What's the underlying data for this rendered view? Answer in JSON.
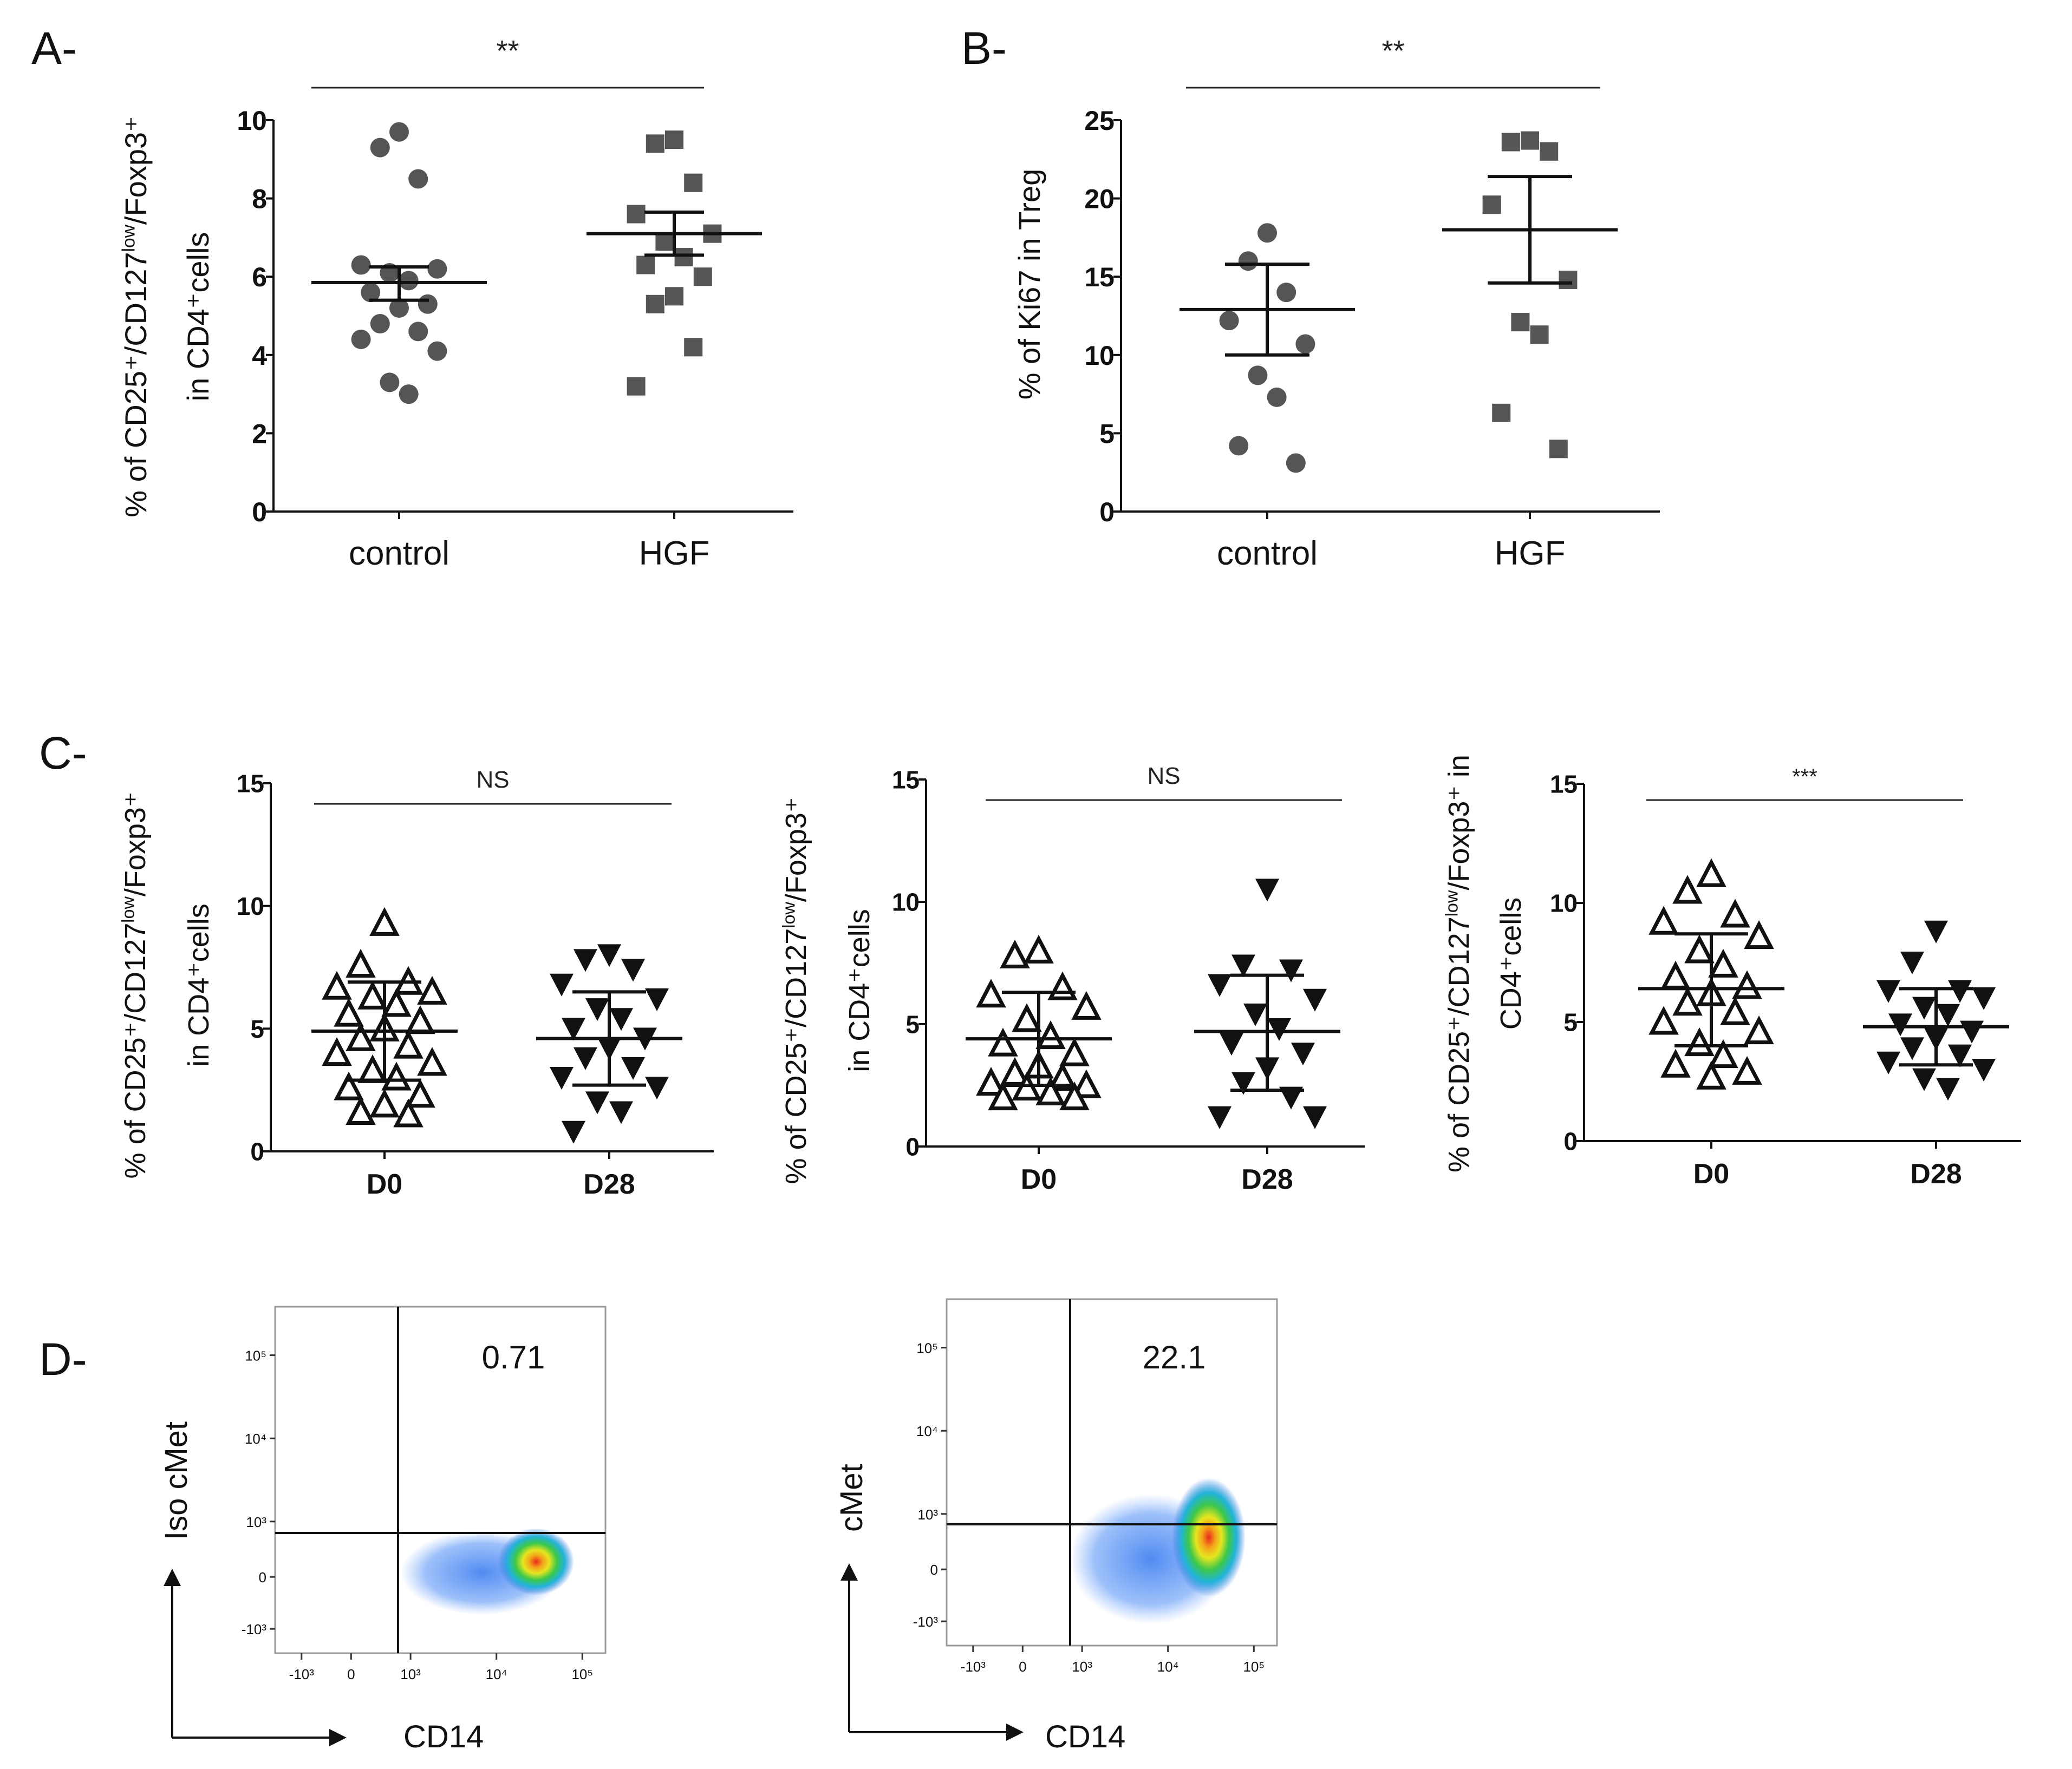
{
  "panels": {
    "A": {
      "label": "A-"
    },
    "B": {
      "label": "B-"
    },
    "C": {
      "label": "C-"
    },
    "D": {
      "label": "D-"
    }
  },
  "colors": {
    "marker": "#555555",
    "axis": "#111111",
    "line": "#222222"
  },
  "chart_data": [
    {
      "id": "A",
      "type": "scatter",
      "title": "",
      "significance": "**",
      "categories": [
        "control",
        "HGF"
      ],
      "ylabel": [
        "% of CD25⁺/CD127",
        "low",
        "/Foxp3⁺",
        "in CD4⁺cells"
      ],
      "ylim": [
        0,
        10
      ],
      "yticks": [
        0,
        2,
        4,
        6,
        8,
        10
      ],
      "marker": "circle-square",
      "series": [
        {
          "name": "control",
          "values": [
            9.7,
            9.3,
            8.5,
            6.3,
            6.2,
            6.1,
            5.9,
            5.6,
            5.3,
            5.2,
            4.8,
            4.6,
            4.4,
            4.1,
            3.3,
            3.0
          ],
          "mean": 5.85,
          "err_low": 5.4,
          "err_high": 6.25
        },
        {
          "name": "HGF",
          "values": [
            9.5,
            9.4,
            8.4,
            7.6,
            7.1,
            6.9,
            6.5,
            6.3,
            6.0,
            5.5,
            5.3,
            4.2,
            3.2
          ],
          "mean": 7.1,
          "err_low": 6.55,
          "err_high": 7.65
        }
      ]
    },
    {
      "id": "B",
      "type": "scatter",
      "title": "",
      "significance": "**",
      "categories": [
        "control",
        "HGF"
      ],
      "ylabel": [
        "% of Ki67  in Treg"
      ],
      "ylim": [
        0,
        25
      ],
      "yticks": [
        0,
        5,
        10,
        15,
        20,
        25
      ],
      "marker": "circle-square",
      "series": [
        {
          "name": "control",
          "values": [
            17.8,
            16.0,
            14.0,
            12.2,
            10.7,
            8.7,
            7.3,
            4.2,
            3.1
          ],
          "mean": 12.9,
          "err_low": 10.0,
          "err_high": 15.8
        },
        {
          "name": "HGF",
          "values": [
            23.7,
            23.6,
            23.0,
            19.6,
            14.8,
            12.1,
            11.3,
            6.3,
            4.0
          ],
          "mean": 18.0,
          "err_low": 14.6,
          "err_high": 21.4
        }
      ]
    },
    {
      "id": "C1",
      "type": "scatter",
      "title": "",
      "significance": "NS",
      "categories": [
        "D0",
        "D28"
      ],
      "ylabel": [
        "% of CD25⁺/CD127",
        "low",
        "/Foxp3⁺",
        "in CD4⁺cells"
      ],
      "ylim": [
        0,
        15
      ],
      "yticks": [
        0,
        5,
        10,
        15
      ],
      "marker": "triangle",
      "series": [
        {
          "name": "D0",
          "values": [
            9.3,
            7.6,
            6.9,
            6.7,
            6.5,
            6.3,
            6.0,
            5.6,
            5.3,
            5.0,
            4.6,
            4.3,
            4.0,
            3.6,
            3.3,
            3.0,
            2.6,
            2.3,
            1.9,
            1.6,
            1.5
          ],
          "mean": 4.9,
          "err_low": 2.9,
          "err_high": 6.9
        },
        {
          "name": "D28",
          "values": [
            8.0,
            7.8,
            7.4,
            6.8,
            6.2,
            5.8,
            5.4,
            5.0,
            4.6,
            4.2,
            3.8,
            3.4,
            3.0,
            2.6,
            2.0,
            1.6,
            0.8
          ],
          "mean": 4.6,
          "err_low": 2.7,
          "err_high": 6.5
        }
      ]
    },
    {
      "id": "C2",
      "type": "scatter",
      "title": "",
      "significance": "NS",
      "categories": [
        "D0",
        "D28"
      ],
      "ylabel": [
        "% of CD25⁺/CD127",
        "low",
        "/Foxp3⁺",
        "in CD4⁺cells"
      ],
      "ylim": [
        0,
        15
      ],
      "yticks": [
        0,
        5,
        10,
        15
      ],
      "marker": "triangle",
      "series": [
        {
          "name": "D0",
          "values": [
            8.0,
            7.8,
            6.5,
            6.2,
            5.7,
            5.2,
            4.5,
            4.2,
            3.8,
            3.3,
            3.0,
            2.8,
            2.6,
            2.5,
            2.4,
            2.2,
            2.0,
            2.0
          ],
          "mean": 4.4,
          "err_low": 2.5,
          "err_high": 6.3
        },
        {
          "name": "D28",
          "values": [
            10.5,
            7.4,
            7.2,
            6.6,
            6.0,
            5.4,
            4.8,
            4.2,
            3.8,
            3.2,
            2.6,
            2.0,
            1.2,
            1.2
          ],
          "mean": 4.7,
          "err_low": 2.3,
          "err_high": 7.0
        }
      ]
    },
    {
      "id": "C3",
      "type": "scatter",
      "title": "",
      "significance": "***",
      "categories": [
        "D0",
        "D28"
      ],
      "ylabel": [
        "% of CD25⁺/CD127",
        "low",
        "/Foxp3⁺ in",
        "CD4⁺cells"
      ],
      "ylim": [
        0,
        15
      ],
      "yticks": [
        0,
        5,
        10,
        15
      ],
      "marker": "triangle",
      "series": [
        {
          "name": "D0",
          "values": [
            11.2,
            10.5,
            9.5,
            9.2,
            8.6,
            8.0,
            7.4,
            6.9,
            6.5,
            6.2,
            5.8,
            5.4,
            5.0,
            4.6,
            4.1,
            3.6,
            3.2,
            2.9,
            2.7
          ],
          "mean": 6.4,
          "err_low": 4.0,
          "err_high": 8.7
        },
        {
          "name": "D28",
          "values": [
            8.8,
            7.5,
            6.3,
            6.3,
            6.0,
            5.6,
            5.3,
            4.9,
            4.6,
            4.3,
            3.9,
            3.6,
            3.3,
            3.0,
            2.6,
            2.2
          ],
          "mean": 4.8,
          "err_low": 3.2,
          "err_high": 6.4
        }
      ]
    },
    {
      "id": "D1",
      "type": "scatter",
      "subtype": "flow-cytometry-density",
      "title": "",
      "gate_value": "0.71",
      "xlabel": "CD14",
      "ylabel": "Iso cMet",
      "xticks": [
        "-10³",
        "0",
        "10³",
        "10⁴",
        "10⁵"
      ],
      "yticks": [
        "10⁵",
        "10⁴",
        "10³",
        "0",
        "-10³"
      ]
    },
    {
      "id": "D2",
      "type": "scatter",
      "subtype": "flow-cytometry-density",
      "title": "",
      "gate_value": "22.1",
      "xlabel": "CD14",
      "ylabel": "cMet",
      "xticks": [
        "-10³",
        "0",
        "10³",
        "10⁴",
        "10⁵"
      ],
      "yticks": [
        "10⁵",
        "10⁴",
        "10³",
        "0",
        "-10³"
      ]
    }
  ]
}
